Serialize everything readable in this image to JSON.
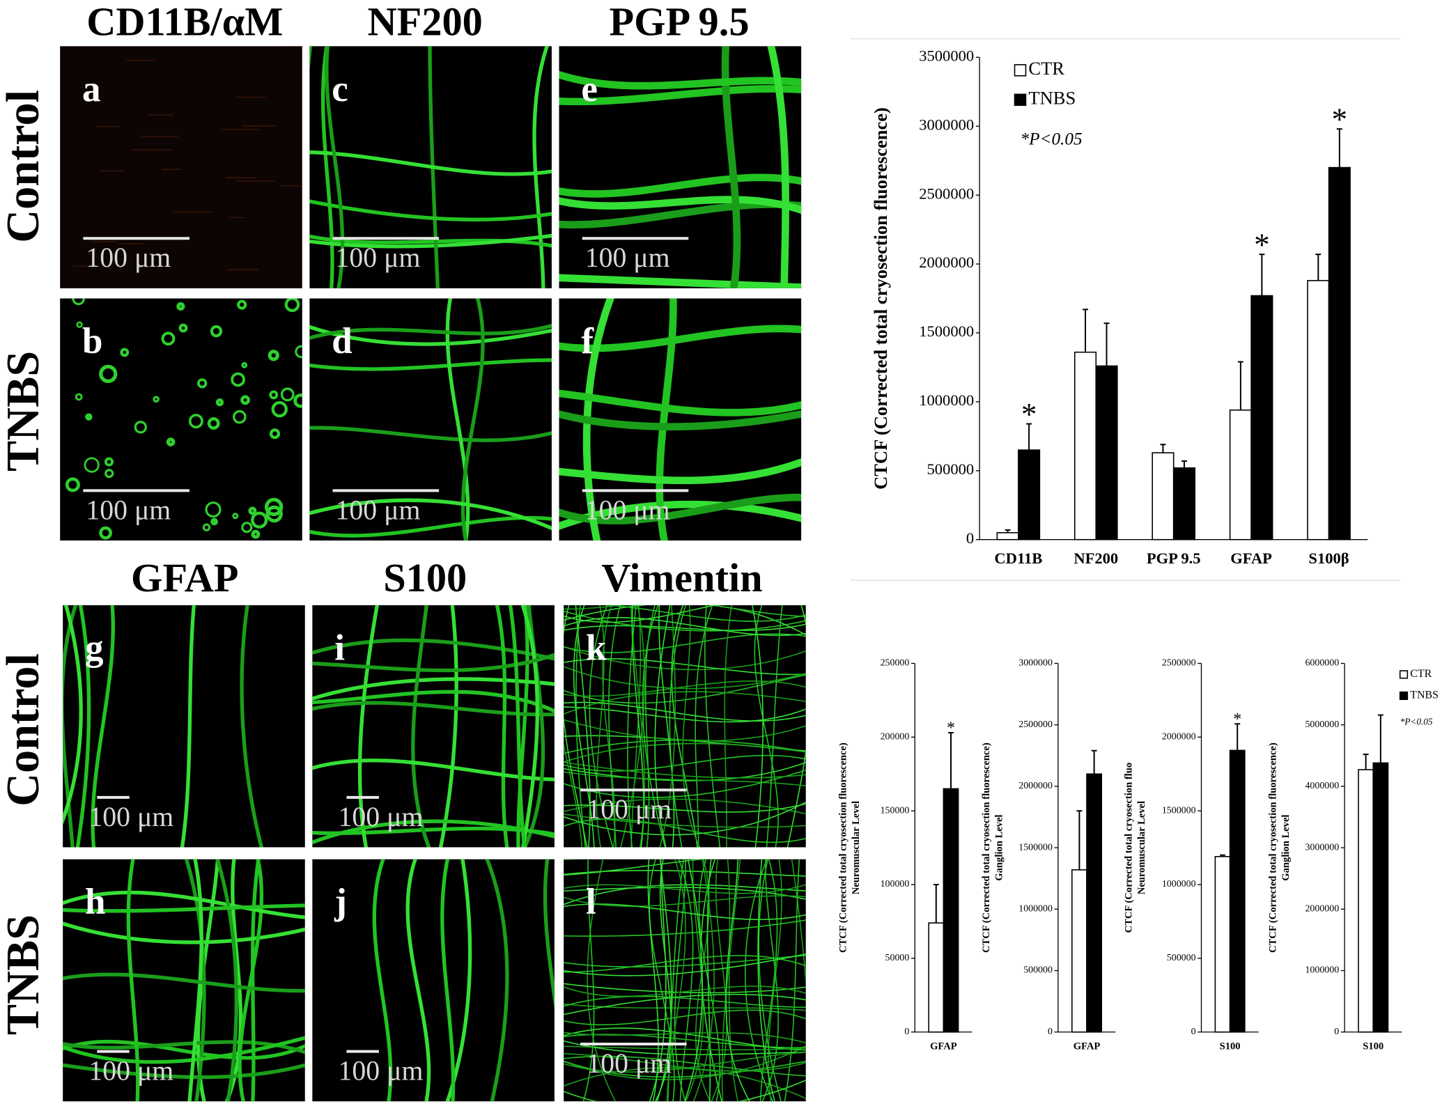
{
  "figure": {
    "top_headers": [
      "CD11B/αM",
      "NF200",
      "PGP 9.5"
    ],
    "bottom_headers": [
      "GFAP",
      "S100",
      "Vimentin"
    ],
    "row_labels": [
      "Control",
      "TNBS",
      "Control",
      "TNBS"
    ],
    "panels": [
      {
        "letter": "a",
        "scale_bar": "100 μm"
      },
      {
        "letter": "b",
        "scale_bar": "100 μm"
      },
      {
        "letter": "c",
        "scale_bar": "100 μm"
      },
      {
        "letter": "d",
        "scale_bar": "100 μm"
      },
      {
        "letter": "e",
        "scale_bar": "100 μm"
      },
      {
        "letter": "f",
        "scale_bar": "100 μm"
      },
      {
        "letter": "g",
        "scale_bar": "100 μm"
      },
      {
        "letter": "h",
        "scale_bar": "100 μm"
      },
      {
        "letter": "i",
        "scale_bar": "100 μm"
      },
      {
        "letter": "j",
        "scale_bar": "100 μm"
      },
      {
        "letter": "k",
        "scale_bar": "100 μm"
      },
      {
        "letter": "l",
        "scale_bar": "100 μm"
      }
    ]
  },
  "chart_data": [
    {
      "type": "bar",
      "ylabel": [
        "CTCF (Corrected total cryosection fluorescence)"
      ],
      "categories": [
        "CD11B",
        "NF200",
        "PGP 9.5",
        "GFAP",
        "S100β"
      ],
      "series": [
        {
          "name": "CTR",
          "color": "#ffffff",
          "values": [
            50000,
            1360000,
            630000,
            940000,
            1880000
          ],
          "errors": [
            20000,
            310000,
            60000,
            350000,
            190000
          ]
        },
        {
          "name": "TNBS",
          "color": "#000000",
          "values": [
            650000,
            1260000,
            520000,
            1770000,
            2700000
          ],
          "errors": [
            190000,
            310000,
            50000,
            300000,
            280000
          ],
          "significant": [
            true,
            false,
            false,
            true,
            true
          ]
        }
      ],
      "significance_marker": "*",
      "annotation": "*P<0.05",
      "ylim": [
        0,
        3500000
      ],
      "yticks": [
        0,
        500000,
        1000000,
        1500000,
        2000000,
        2500000,
        3000000,
        3500000
      ],
      "legend": "top-left"
    },
    {
      "type": "bar",
      "ylabel": [
        "CTCF (Corrected total cryosection fluorescence)",
        "Neuromuscular Level"
      ],
      "categories": [
        "GFAP"
      ],
      "series": [
        {
          "color": "#ffffff",
          "values": [
            74000
          ],
          "errors": [
            26000
          ]
        },
        {
          "color": "#000000",
          "values": [
            165000
          ],
          "errors": [
            38000
          ],
          "significant": [
            true
          ]
        }
      ],
      "significance_marker": "*",
      "ylim": [
        0,
        250000
      ],
      "yticks": [
        0,
        50000,
        100000,
        150000,
        200000,
        250000
      ]
    },
    {
      "type": "bar",
      "ylabel": [
        "CTCF (Corrected total cryosection fluorescence)",
        "Ganglion Level"
      ],
      "categories": [
        "GFAP"
      ],
      "series": [
        {
          "color": "#ffffff",
          "values": [
            1320000
          ],
          "errors": [
            480000
          ]
        },
        {
          "color": "#000000",
          "values": [
            2100000
          ],
          "errors": [
            190000
          ]
        }
      ],
      "ylim": [
        0,
        3000000
      ],
      "yticks": [
        0,
        500000,
        1000000,
        1500000,
        2000000,
        2500000,
        3000000
      ]
    },
    {
      "type": "bar",
      "ylabel": [
        "CTCF (Corrected total cryosection fluo",
        "Neuromuscular Level"
      ],
      "categories": [
        "S100"
      ],
      "series": [
        {
          "color": "#ffffff",
          "values": [
            1190000
          ],
          "errors": [
            10000
          ]
        },
        {
          "color": "#000000",
          "values": [
            1910000
          ],
          "errors": [
            180000
          ],
          "significant": [
            true
          ]
        }
      ],
      "significance_marker": "*",
      "ylim": [
        0,
        2500000
      ],
      "yticks": [
        0,
        500000,
        1000000,
        1500000,
        2000000,
        2500000
      ]
    },
    {
      "type": "bar",
      "ylabel": [
        "CTCF (Corrected total cryosection fluorescence)",
        "Ganglion Level"
      ],
      "categories": [
        "S100"
      ],
      "series": [
        {
          "name": "CTR",
          "color": "#ffffff",
          "values": [
            4270000
          ],
          "errors": [
            250000
          ]
        },
        {
          "name": "TNBS",
          "color": "#000000",
          "values": [
            4380000
          ],
          "errors": [
            780000
          ]
        }
      ],
      "annotation": "*P<0.05",
      "ylim": [
        0,
        6000000
      ],
      "yticks": [
        0,
        1000000,
        2000000,
        3000000,
        4000000,
        5000000,
        6000000
      ],
      "legend": "top-right"
    }
  ]
}
